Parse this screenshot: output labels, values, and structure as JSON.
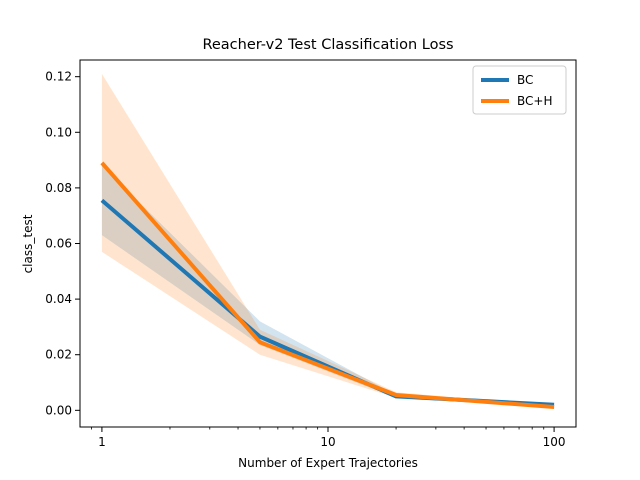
{
  "chart_data": {
    "type": "line",
    "title": "Reacher-v2 Test Classification Loss",
    "xlabel": "Number of Expert Trajectories",
    "ylabel": "class_test",
    "xscale": "log",
    "xlim": [
      0.8,
      125
    ],
    "ylim": [
      -0.006,
      0.126
    ],
    "xticks": [
      1,
      10,
      100
    ],
    "xtick_labels": [
      "1",
      "10",
      "100"
    ],
    "yticks": [
      0.0,
      0.02,
      0.04,
      0.06,
      0.08,
      0.1,
      0.12
    ],
    "ytick_labels": [
      "0.00",
      "0.02",
      "0.04",
      "0.06",
      "0.08",
      "0.10",
      "0.12"
    ],
    "grid": false,
    "legend_position": "top-right",
    "x": [
      1,
      5,
      20,
      100
    ],
    "series": [
      {
        "name": "BC",
        "color": "#1f77b4",
        "values": [
          0.0755,
          0.0265,
          0.005,
          0.002
        ],
        "lower": [
          0.063,
          0.0235,
          0.0045,
          0.0018
        ],
        "upper": [
          0.088,
          0.032,
          0.0055,
          0.0022
        ]
      },
      {
        "name": "BC+H",
        "color": "#ff7f0e",
        "values": [
          0.089,
          0.0245,
          0.0055,
          0.0012
        ],
        "lower": [
          0.057,
          0.02,
          0.0045,
          0.0009
        ],
        "upper": [
          0.121,
          0.029,
          0.0065,
          0.0015
        ]
      }
    ]
  }
}
